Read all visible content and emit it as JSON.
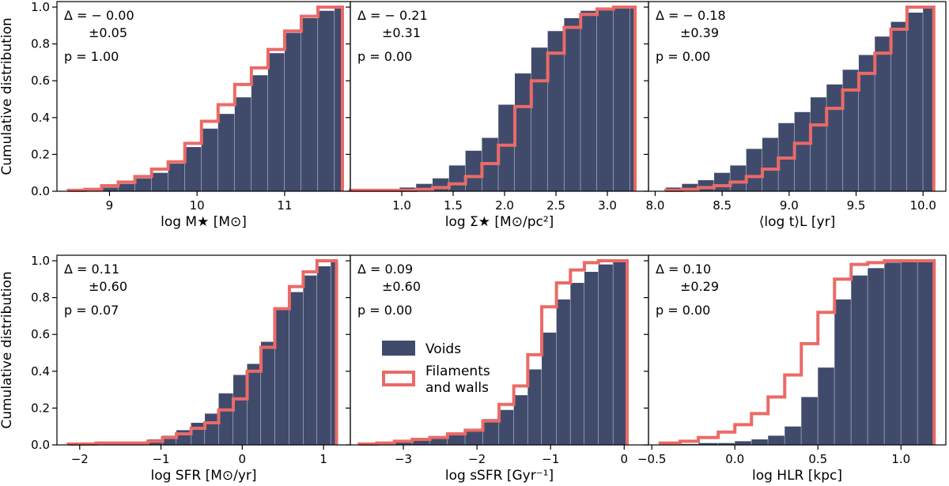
{
  "figure": {
    "ylabel": "Cumulative distribution",
    "legend": {
      "voids": "Voids",
      "filaments_line1": "Filaments",
      "filaments_line2": "and walls"
    },
    "colors": {
      "voids": "#404b6c",
      "filaments": "#eb6a66",
      "frame": "#000000"
    }
  },
  "chart_data": [
    {
      "type": "histogram-step",
      "id": "mstar",
      "xlabel": "log M★ [M⊙]",
      "xlim": [
        8.4,
        11.75
      ],
      "ylim": [
        0,
        1.03
      ],
      "xticks": [
        9,
        10,
        11
      ],
      "xtick_labels": [
        "9",
        "10",
        "11"
      ],
      "yticks": [
        0,
        0.2,
        0.4,
        0.6,
        0.8,
        1.0
      ],
      "ytick_labels": [
        "0.0",
        "0.2",
        "0.4",
        "0.6",
        "0.8",
        "1.0"
      ],
      "stats": {
        "delta": "Δ = − 0.00",
        "err": "±0.05",
        "p": "p = 1.00"
      },
      "bin_edges": [
        8.53,
        8.72,
        8.91,
        9.1,
        9.29,
        9.48,
        9.67,
        9.86,
        10.05,
        10.24,
        10.43,
        10.62,
        10.81,
        11.0,
        11.19,
        11.38,
        11.57,
        11.66
      ],
      "voids": [
        0.005,
        0.01,
        0.02,
        0.04,
        0.07,
        0.1,
        0.15,
        0.24,
        0.34,
        0.42,
        0.51,
        0.63,
        0.75,
        0.86,
        0.94,
        0.98,
        1.0
      ],
      "filaments": [
        0.005,
        0.01,
        0.03,
        0.05,
        0.08,
        0.12,
        0.16,
        0.26,
        0.38,
        0.47,
        0.58,
        0.67,
        0.77,
        0.87,
        0.95,
        1.0,
        1.0
      ]
    },
    {
      "type": "histogram-step",
      "id": "sigma",
      "xlabel": "log Σ★ [M⊙/pc²]",
      "xlim": [
        0.5,
        3.4
      ],
      "ylim": [
        0,
        1.03
      ],
      "xticks": [
        1.0,
        1.5,
        2.0,
        2.5,
        3.0
      ],
      "xtick_labels": [
        "1.0",
        "1.5",
        "2.0",
        "2.5",
        "3.0"
      ],
      "yticks": [
        0,
        0.2,
        0.4,
        0.6,
        0.8,
        1.0
      ],
      "ytick_labels": [],
      "stats": {
        "delta": "Δ = − 0.21",
        "err": "±0.31",
        "p": "p = 0.00"
      },
      "bin_edges": [
        0.5,
        0.66,
        0.82,
        0.98,
        1.14,
        1.3,
        1.46,
        1.62,
        1.78,
        1.94,
        2.1,
        2.26,
        2.42,
        2.58,
        2.74,
        2.9,
        3.06,
        3.22,
        3.27
      ],
      "voids": [
        0.005,
        0.005,
        0.01,
        0.02,
        0.04,
        0.07,
        0.14,
        0.22,
        0.29,
        0.47,
        0.64,
        0.78,
        0.87,
        0.94,
        0.98,
        0.99,
        1.0,
        1.0
      ],
      "filaments": [
        0.005,
        0.005,
        0.005,
        0.005,
        0.01,
        0.02,
        0.04,
        0.08,
        0.15,
        0.25,
        0.46,
        0.6,
        0.75,
        0.89,
        0.96,
        0.99,
        1.0,
        1.0
      ]
    },
    {
      "type": "histogram-step",
      "id": "age",
      "xlabel": "⟨log t⟩L [yr]",
      "xlim": [
        7.95,
        10.17
      ],
      "ylim": [
        0,
        1.03
      ],
      "xticks": [
        8.0,
        8.5,
        9.0,
        9.5,
        10.0
      ],
      "xtick_labels": [
        "8.0",
        "8.5",
        "9.0",
        "9.5",
        "10.0"
      ],
      "yticks": [
        0,
        0.2,
        0.4,
        0.6,
        0.8,
        1.0
      ],
      "ytick_labels": [],
      "stats": {
        "delta": "Δ = − 0.18",
        "err": "±0.39",
        "p": "p = 0.00"
      },
      "bin_edges": [
        8.08,
        8.2,
        8.32,
        8.44,
        8.56,
        8.68,
        8.8,
        8.92,
        9.04,
        9.16,
        9.28,
        9.4,
        9.52,
        9.64,
        9.76,
        9.88,
        10.0,
        10.08
      ],
      "voids": [
        0.02,
        0.04,
        0.06,
        0.1,
        0.14,
        0.23,
        0.29,
        0.37,
        0.43,
        0.51,
        0.58,
        0.66,
        0.74,
        0.84,
        0.92,
        0.97,
        1.0
      ],
      "filaments": [
        0.005,
        0.01,
        0.02,
        0.03,
        0.05,
        0.08,
        0.12,
        0.18,
        0.26,
        0.36,
        0.45,
        0.55,
        0.64,
        0.75,
        0.88,
        1.0,
        1.0
      ]
    },
    {
      "type": "histogram-step",
      "id": "sfr",
      "xlabel": "log SFR [M⊙/yr]",
      "xlim": [
        -2.28,
        1.33
      ],
      "ylim": [
        0,
        1.03
      ],
      "xticks": [
        -2,
        -1,
        0,
        1
      ],
      "xtick_labels": [
        "−2",
        "−1",
        "0",
        "1"
      ],
      "yticks": [
        0,
        0.2,
        0.4,
        0.6,
        0.8,
        1.0
      ],
      "ytick_labels": [
        "0.0",
        "0.2",
        "0.4",
        "0.6",
        "0.8",
        "1.0"
      ],
      "stats": {
        "delta": "Δ = 0.11",
        "err": "±0.60",
        "p": "p = 0.07"
      },
      "bin_edges": [
        -2.14,
        -1.8,
        -1.48,
        -1.16,
        -0.98,
        -0.81,
        -0.63,
        -0.46,
        -0.29,
        -0.11,
        0.06,
        0.23,
        0.4,
        0.58,
        0.75,
        0.92,
        1.09,
        1.16
      ],
      "voids": [
        0.005,
        0.01,
        0.01,
        0.03,
        0.05,
        0.08,
        0.12,
        0.17,
        0.28,
        0.38,
        0.44,
        0.56,
        0.74,
        0.83,
        0.92,
        0.97,
        1.0
      ],
      "filaments": [
        0.005,
        0.01,
        0.01,
        0.02,
        0.04,
        0.06,
        0.09,
        0.12,
        0.19,
        0.25,
        0.4,
        0.53,
        0.74,
        0.86,
        0.94,
        1.0,
        1.0
      ]
    },
    {
      "type": "histogram-step",
      "id": "ssfr",
      "xlabel": "log sSFR [Gyr⁻¹]",
      "xlim": [
        -3.72,
        0.33
      ],
      "ylim": [
        0,
        1.03
      ],
      "xticks": [
        -3,
        -2,
        -1,
        0
      ],
      "xtick_labels": [
        "−3",
        "−2",
        "−1",
        "0"
      ],
      "yticks": [
        0,
        0.2,
        0.4,
        0.6,
        0.8,
        1.0
      ],
      "ytick_labels": [],
      "stats": {
        "delta": "Δ = 0.09",
        "err": "±0.60",
        "p": "p = 0.00"
      },
      "bin_edges": [
        -3.6,
        -3.36,
        -3.12,
        -2.88,
        -2.64,
        -2.4,
        -2.16,
        -1.92,
        -1.7,
        -1.5,
        -1.31,
        -1.12,
        -0.92,
        -0.73,
        -0.54,
        -0.35,
        -0.15,
        0.04
      ],
      "voids": [
        0.005,
        0.01,
        0.02,
        0.03,
        0.04,
        0.06,
        0.08,
        0.14,
        0.19,
        0.27,
        0.41,
        0.61,
        0.79,
        0.88,
        0.94,
        0.98,
        1.0
      ],
      "filaments": [
        0.005,
        0.01,
        0.02,
        0.03,
        0.04,
        0.06,
        0.08,
        0.13,
        0.22,
        0.32,
        0.49,
        0.75,
        0.88,
        0.95,
        0.99,
        1.0,
        1.0
      ]
    },
    {
      "type": "histogram-step",
      "id": "hlr",
      "xlabel": "log HLR [kpc]",
      "xlim": [
        -0.52,
        1.27
      ],
      "ylim": [
        0,
        1.03
      ],
      "xticks": [
        -0.5,
        0.0,
        0.5,
        1.0
      ],
      "xtick_labels": [
        "−0.5",
        "0.0",
        "0.5",
        "1.0"
      ],
      "yticks": [
        0,
        0.2,
        0.4,
        0.6,
        0.8,
        1.0
      ],
      "ytick_labels": [],
      "stats": {
        "delta": "Δ = 0.10",
        "err": "±0.29",
        "p": "p = 0.00"
      },
      "bin_edges": [
        -0.45,
        -0.33,
        -0.22,
        -0.1,
        0.0,
        0.1,
        0.2,
        0.3,
        0.4,
        0.5,
        0.6,
        0.7,
        0.8,
        0.9,
        1.0,
        1.1,
        1.2
      ],
      "voids": [
        0.005,
        0.005,
        0.01,
        0.01,
        0.02,
        0.03,
        0.05,
        0.1,
        0.26,
        0.42,
        0.79,
        0.92,
        0.96,
        0.99,
        1.0,
        1.0
      ],
      "filaments": [
        0.01,
        0.02,
        0.04,
        0.07,
        0.11,
        0.17,
        0.26,
        0.38,
        0.55,
        0.72,
        0.9,
        0.98,
        0.99,
        1.0,
        1.0,
        1.0
      ]
    }
  ]
}
